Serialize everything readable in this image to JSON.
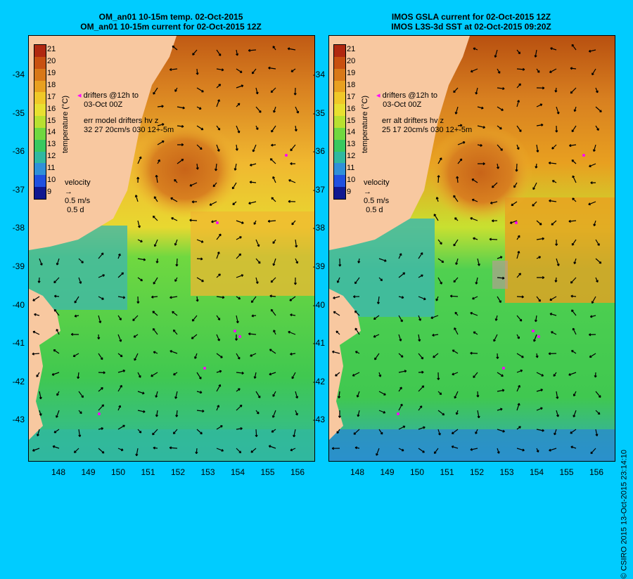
{
  "left_panel": {
    "title_line1": "OM_an01 10-15m temp. 02-Oct-2015",
    "title_line2": "OM_an01 10-15m current for 02-Oct-2015 12Z",
    "legend_drifters_1": "drifters @12h to",
    "legend_drifters_2": "03-Oct 00Z",
    "legend_err_1": "err model drifters hv z",
    "legend_err_2": "32 27 20cm/s 030 12+-5m",
    "velocity_label": "velocity",
    "velocity_scale": "0.5 m/s",
    "velocity_time": "0.5 d"
  },
  "right_panel": {
    "title_line1": "IMOS GSLA current for 02-Oct-2015 12Z",
    "title_line2": "IMOS L3S-3d SST at 02-Oct-2015 09:20Z",
    "legend_drifters_1": "drifters @12h to",
    "legend_drifters_2": "03-Oct 00Z",
    "legend_err_1": "err alt drifters hv z",
    "legend_err_2": "25 17 20cm/s 030 12+-5m",
    "velocity_label": "velocity",
    "velocity_scale": "0.5 m/s",
    "velocity_time": "0.5 d"
  },
  "colorbar": {
    "title": "temperature (°C)",
    "labels": [
      "21",
      "20",
      "19",
      "18",
      "17",
      "16",
      "15",
      "14",
      "13",
      "12",
      "11",
      "10",
      "9"
    ],
    "colors": [
      "#b02810",
      "#c85010",
      "#d87818",
      "#e8a020",
      "#f0c828",
      "#e8e030",
      "#b8e030",
      "#70d840",
      "#38c860",
      "#30b8a0",
      "#3090d8",
      "#2050e0",
      "#101890"
    ]
  },
  "axes": {
    "lat_ticks": [
      "-34",
      "-35",
      "-36",
      "-37",
      "-38",
      "-39",
      "-40",
      "-41",
      "-42",
      "-43"
    ],
    "lon_ticks": [
      "148",
      "149",
      "150",
      "151",
      "152",
      "153",
      "154",
      "155",
      "156"
    ]
  },
  "credit": "© CSIRO 2015   13-Oct-2015 23:14:10",
  "colors": {
    "background": "#00ccff",
    "land": "#f8c8a0",
    "warm": "#c86418",
    "mid": "#f0b830",
    "cool": "#40c850",
    "cold": "#40b8a8",
    "drifter": "#ff00ff"
  }
}
